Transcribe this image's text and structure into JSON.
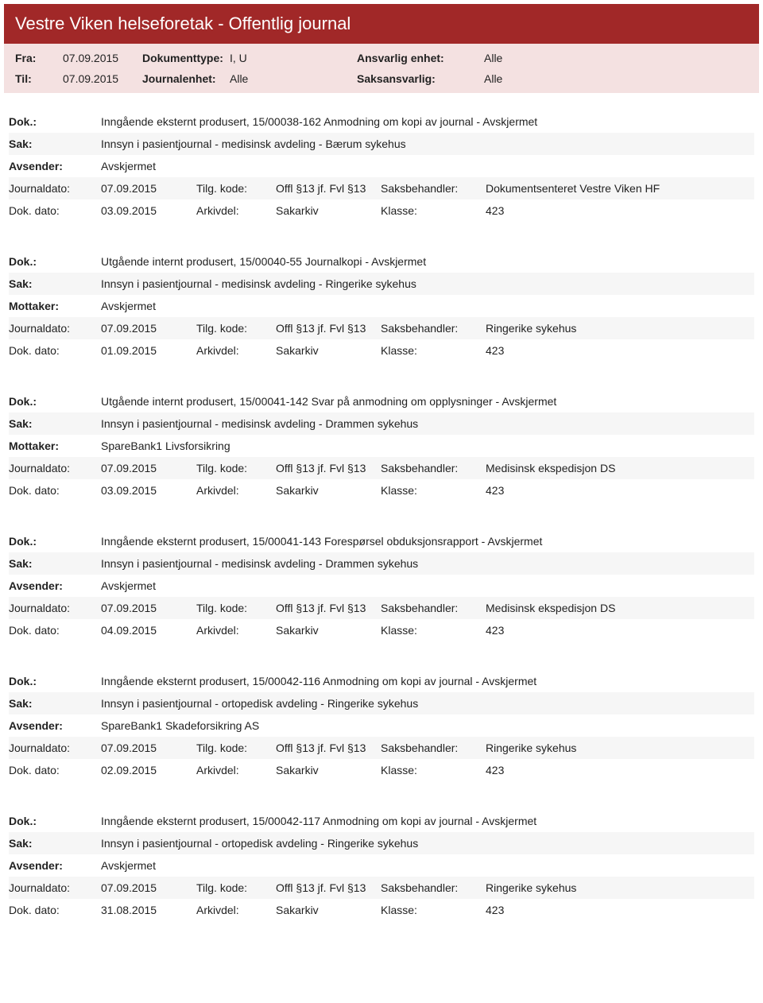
{
  "header": {
    "title": "Vestre Viken helseforetak - Offentlig journal"
  },
  "meta": {
    "fra_label": "Fra:",
    "fra_value": "07.09.2015",
    "til_label": "Til:",
    "til_value": "07.09.2015",
    "dokumenttype_label": "Dokumenttype:",
    "dokumenttype_value": "I, U",
    "journalenhet_label": "Journalenhet:",
    "journalenhet_value": "Alle",
    "ansvarlig_label": "Ansvarlig enhet:",
    "ansvarlig_value": "Alle",
    "saksansvarlig_label": "Saksansvarlig:",
    "saksansvarlig_value": "Alle"
  },
  "labels": {
    "dok": "Dok.:",
    "sak": "Sak:",
    "avsender": "Avsender:",
    "mottaker": "Mottaker:",
    "journaldato": "Journaldato:",
    "dokdato": "Dok. dato:",
    "tilgkode": "Tilg. kode:",
    "arkivdel": "Arkivdel:",
    "saksbehandler": "Saksbehandler:",
    "klasse": "Klasse:"
  },
  "entries": [
    {
      "dok": "Inngående eksternt produsert, 15/00038-162 Anmodning om kopi av journal - Avskjermet",
      "sak": "Innsyn i pasientjournal - medisinsk avdeling - Bærum sykehus",
      "party_label": "Avsender:",
      "party": "Avskjermet",
      "journaldato": "07.09.2015",
      "tilgkode": "Offl §13 jf. Fvl §13",
      "saksbehandler": "Dokumentsenteret Vestre Viken HF",
      "dokdato": "03.09.2015",
      "arkivdel": "Sakarkiv",
      "klasse": "423"
    },
    {
      "dok": "Utgående internt produsert, 15/00040-55 Journalkopi - Avskjermet",
      "sak": "Innsyn i pasientjournal - medisinsk avdeling - Ringerike sykehus",
      "party_label": "Mottaker:",
      "party": "Avskjermet",
      "journaldato": "07.09.2015",
      "tilgkode": "Offl §13 jf. Fvl §13",
      "saksbehandler": "Ringerike sykehus",
      "dokdato": "01.09.2015",
      "arkivdel": "Sakarkiv",
      "klasse": "423"
    },
    {
      "dok": "Utgående internt produsert, 15/00041-142 Svar på anmodning om opplysninger - Avskjermet",
      "sak": "Innsyn i pasientjournal - medisinsk avdeling - Drammen sykehus",
      "party_label": "Mottaker:",
      "party": "SpareBank1 Livsforsikring",
      "journaldato": "07.09.2015",
      "tilgkode": "Offl §13 jf. Fvl §13",
      "saksbehandler": "Medisinsk ekspedisjon DS",
      "dokdato": "03.09.2015",
      "arkivdel": "Sakarkiv",
      "klasse": "423"
    },
    {
      "dok": "Inngående eksternt produsert, 15/00041-143 Forespørsel obduksjonsrapport - Avskjermet",
      "sak": "Innsyn i pasientjournal - medisinsk avdeling - Drammen sykehus",
      "party_label": "Avsender:",
      "party": "Avskjermet",
      "journaldato": "07.09.2015",
      "tilgkode": "Offl §13 jf. Fvl §13",
      "saksbehandler": "Medisinsk ekspedisjon DS",
      "dokdato": "04.09.2015",
      "arkivdel": "Sakarkiv",
      "klasse": "423"
    },
    {
      "dok": "Inngående eksternt produsert, 15/00042-116 Anmodning om kopi av journal - Avskjermet",
      "sak": "Innsyn i pasientjournal - ortopedisk avdeling - Ringerike sykehus",
      "party_label": "Avsender:",
      "party": "SpareBank1 Skadeforsikring AS",
      "journaldato": "07.09.2015",
      "tilgkode": "Offl §13 jf. Fvl §13",
      "saksbehandler": "Ringerike sykehus",
      "dokdato": "02.09.2015",
      "arkivdel": "Sakarkiv",
      "klasse": "423"
    },
    {
      "dok": "Inngående eksternt produsert, 15/00042-117 Anmodning om kopi av journal - Avskjermet",
      "sak": "Innsyn i pasientjournal - ortopedisk avdeling - Ringerike sykehus",
      "party_label": "Avsender:",
      "party": "Avskjermet",
      "journaldato": "07.09.2015",
      "tilgkode": "Offl §13 jf. Fvl §13",
      "saksbehandler": "Ringerike sykehus",
      "dokdato": "31.08.2015",
      "arkivdel": "Sakarkiv",
      "klasse": "423"
    }
  ]
}
